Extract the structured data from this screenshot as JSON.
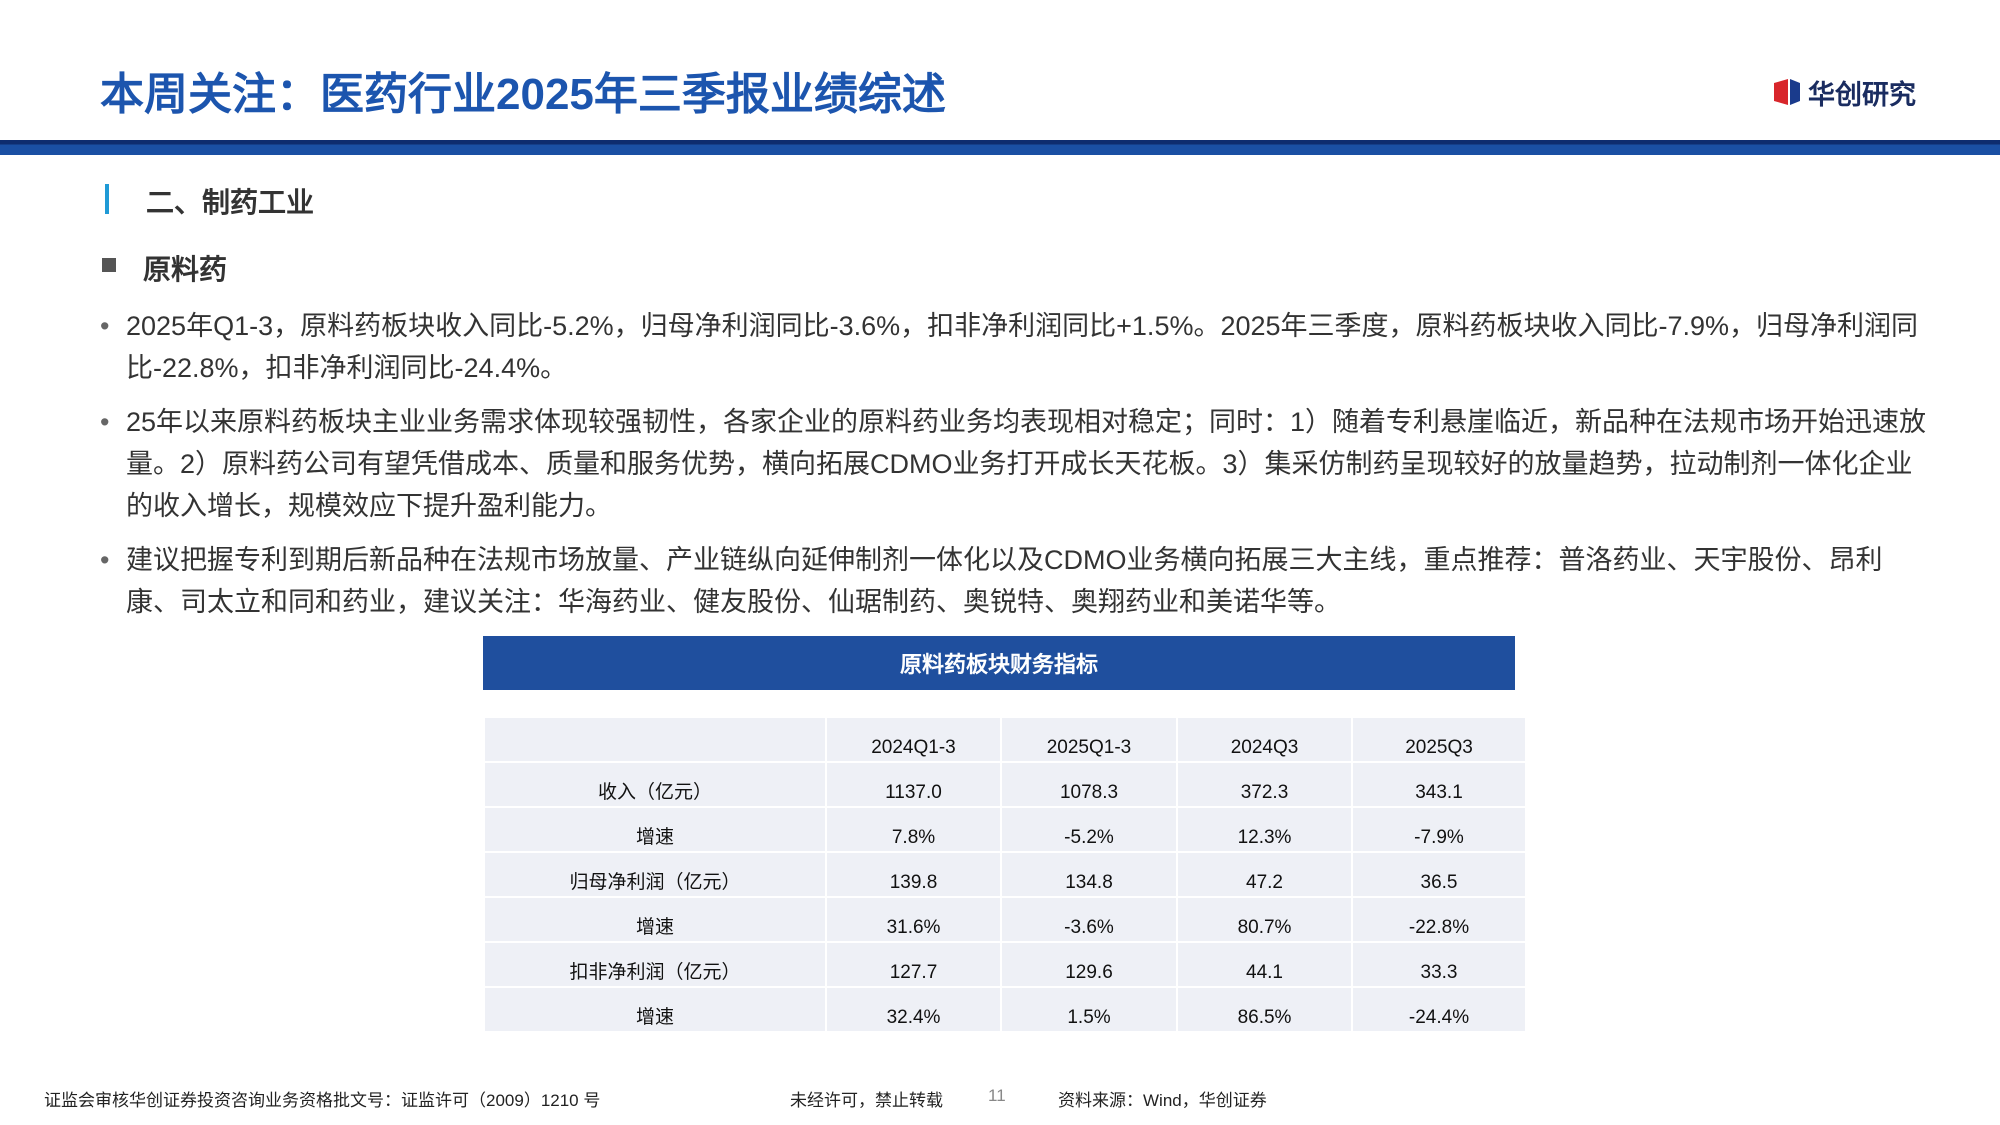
{
  "header": {
    "title": "本周关注：医药行业2025年三季报业绩综述",
    "logo": "华创研究"
  },
  "section": "二、制药工业",
  "subsection": "原料药",
  "bullets": [
    "2025年Q1-3，原料药板块收入同比-5.2%，归母净利润同比-3.6%，扣非净利润同比+1.5%。2025年三季度，原料药板块收入同比-7.9%，归母净利润同比-22.8%，扣非净利润同比-24.4%。",
    "25年以来原料药板块主业业务需求体现较强韧性，各家企业的原料药业务均表现相对稳定；同时：1）随着专利悬崖临近，新品种在法规市场开始迅速放量。2）原料药公司有望凭借成本、质量和服务优势，横向拓展CDMO业务打开成长天花板。3）集采仿制药呈现较好的放量趋势，拉动制剂一体化企业的收入增长，规模效应下提升盈利能力。",
    "建议把握专利到期后新品种在法规市场放量、产业链纵向延伸制剂一体化以及CDMO业务横向拓展三大主线，重点推荐：普洛药业、天宇股份、昂利康、司太立和同和药业，建议关注：华海药业、健友股份、仙琚制药、奥锐特、奥翔药业和美诺华等。"
  ],
  "table": {
    "title": "原料药板块财务指标",
    "columns": [
      "2024Q1-3",
      "2025Q1-3",
      "2024Q3",
      "2025Q3"
    ],
    "rows": [
      [
        "收入（亿元）",
        "1137.0",
        "1078.3",
        "372.3",
        "343.1"
      ],
      [
        "增速",
        "7.8%",
        "-5.2%",
        "12.3%",
        "-7.9%"
      ],
      [
        "归母净利润（亿元）",
        "139.8",
        "134.8",
        "47.2",
        "36.5"
      ],
      [
        "增速",
        "31.6%",
        "-3.6%",
        "80.7%",
        "-22.8%"
      ],
      [
        "扣非净利润（亿元）",
        "127.7",
        "129.6",
        "44.1",
        "33.3"
      ],
      [
        "增速",
        "32.4%",
        "1.5%",
        "86.5%",
        "-24.4%"
      ]
    ]
  },
  "footer": {
    "license": "证监会审核华创证券投资咨询业务资格批文号：证监许可（2009）1210 号",
    "notice": "未经许可，禁止转载",
    "page": "11",
    "source": "资料来源：Wind，华创证券"
  }
}
